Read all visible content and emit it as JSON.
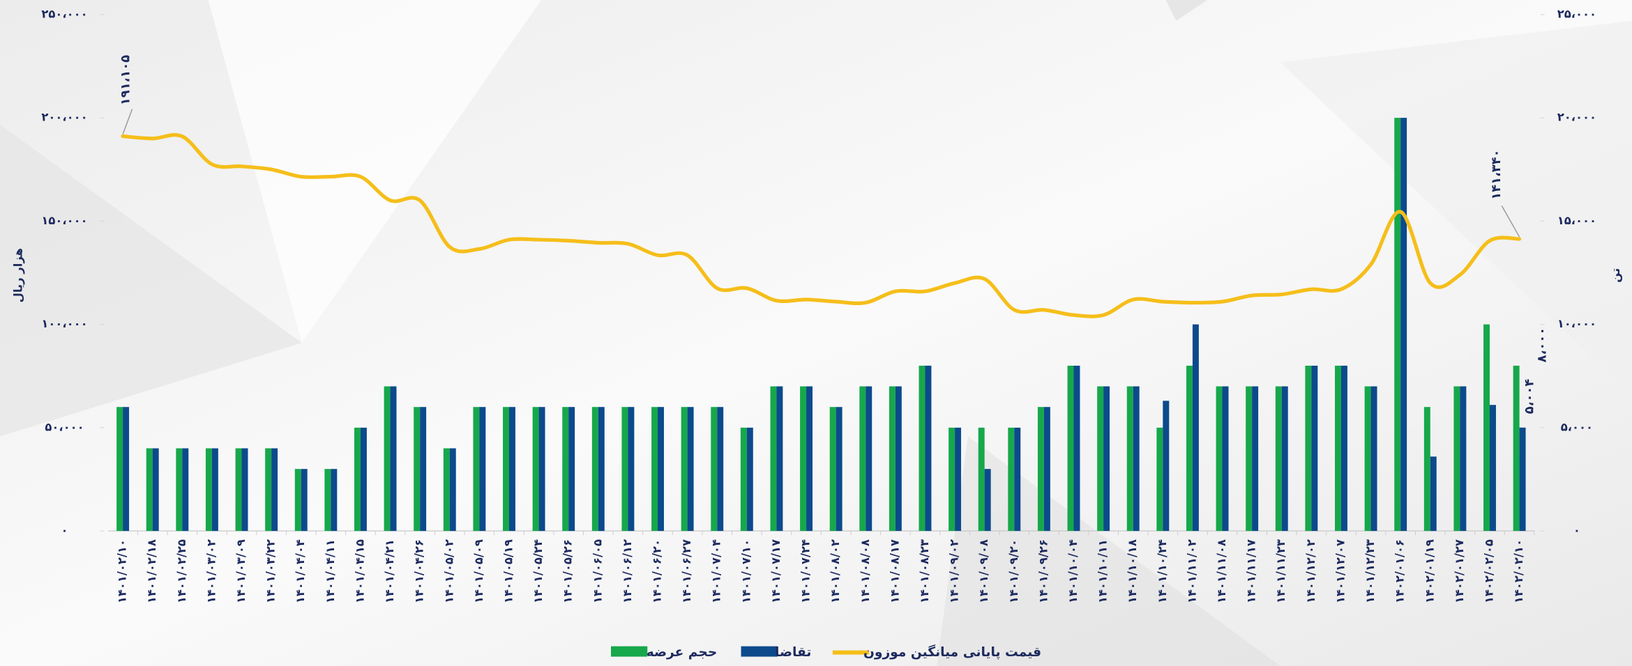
{
  "chart_data": {
    "type": "bar",
    "categories": [
      "۱۴۰۱/۰۲/۱۰",
      "۱۴۰۱/۰۲/۱۸",
      "۱۴۰۱/۰۲/۲۵",
      "۱۴۰۱/۰۳/۰۲",
      "۱۴۰۱/۰۳/۰۹",
      "۱۴۰۱/۰۳/۲۲",
      "۱۴۰۱/۰۴/۰۴",
      "۱۴۰۱/۰۴/۱۱",
      "۱۴۰۱/۰۴/۱۵",
      "۱۴۰۱/۰۴/۲۱",
      "۱۴۰۱/۰۴/۲۶",
      "۱۴۰۱/۰۵/۰۲",
      "۱۴۰۱/۰۵/۰۹",
      "۱۴۰۱/۰۵/۱۹",
      "۱۴۰۱/۰۵/۲۴",
      "۱۴۰۱/۰۵/۲۶",
      "۱۴۰۱/۰۶/۰۵",
      "۱۴۰۱/۰۶/۱۲",
      "۱۴۰۱/۰۶/۲۰",
      "۱۴۰۱/۰۶/۲۷",
      "۱۴۰۱/۰۷/۰۴",
      "۱۴۰۱/۰۷/۱۰",
      "۱۴۰۱/۰۷/۱۷",
      "۱۴۰۱/۰۷/۲۴",
      "۱۴۰۱/۰۸/۰۲",
      "۱۴۰۱/۰۸/۰۸",
      "۱۴۰۱/۰۸/۱۷",
      "۱۴۰۱/۰۸/۲۳",
      "۱۴۰۱/۰۹/۰۲",
      "۱۴۰۱/۰۹/۰۸",
      "۱۴۰۱/۰۹/۲۰",
      "۱۴۰۱/۰۹/۲۶",
      "۱۴۰۱/۱۰/۰۴",
      "۱۴۰۱/۱۰/۱۱",
      "۱۴۰۱/۱۰/۱۸",
      "۱۴۰۱/۱۰/۲۴",
      "۱۴۰۱/۱۱/۰۲",
      "۱۴۰۱/۱۱/۰۸",
      "۱۴۰۱/۱۱/۱۷",
      "۱۴۰۱/۱۱/۲۳",
      "۱۴۰۱/۱۲/۰۲",
      "۱۴۰۱/۱۲/۰۷",
      "۱۴۰۱/۱۲/۲۳",
      "۱۴۰۲/۰۱/۰۶",
      "۱۴۰۲/۰۱/۱۹",
      "۱۴۰۲/۰۱/۲۷",
      "۱۴۰۲/۰۲/۰۵",
      "۱۴۰۲/۰۲/۱۰"
    ],
    "series": [
      {
        "name": "حجم عرضه",
        "type": "bar",
        "axis": "y2",
        "color": "#16a84b",
        "values": [
          6000,
          4000,
          4000,
          4000,
          4000,
          4000,
          3000,
          3000,
          5000,
          7000,
          6000,
          4000,
          6000,
          6000,
          6000,
          6000,
          6000,
          6000,
          6000,
          6000,
          6000,
          5000,
          7000,
          7000,
          6000,
          7000,
          7000,
          8000,
          5000,
          5000,
          5000,
          6000,
          8000,
          7000,
          7000,
          5000,
          8000,
          7000,
          7000,
          7000,
          8000,
          8000,
          7000,
          20000,
          6000,
          7000,
          10000,
          8000
        ],
        "value_labels": [
          null,
          null,
          null,
          null,
          null,
          null,
          null,
          null,
          null,
          null,
          null,
          null,
          null,
          null,
          null,
          null,
          null,
          null,
          null,
          null,
          null,
          null,
          null,
          null,
          null,
          null,
          null,
          null,
          null,
          null,
          null,
          null,
          null,
          null,
          null,
          null,
          null,
          null,
          null,
          null,
          null,
          null,
          null,
          null,
          null,
          null,
          null,
          "۸،۰۰۰"
        ]
      },
      {
        "name": "تقاضا",
        "type": "bar",
        "axis": "y2",
        "color": "#0c4a8c",
        "values": [
          6000,
          4000,
          4000,
          4000,
          4000,
          4000,
          3000,
          3000,
          5000,
          7000,
          6000,
          4000,
          6000,
          6000,
          6000,
          6000,
          6000,
          6000,
          6000,
          6000,
          6000,
          5000,
          7000,
          7000,
          6000,
          7000,
          7000,
          8000,
          5000,
          3000,
          5000,
          6000,
          8000,
          7000,
          7000,
          6300,
          10000,
          7000,
          7000,
          7000,
          8000,
          8000,
          7000,
          20000,
          3600,
          7000,
          6100,
          5004
        ],
        "value_labels": [
          null,
          null,
          null,
          null,
          null,
          null,
          null,
          null,
          null,
          null,
          null,
          null,
          null,
          null,
          null,
          null,
          null,
          null,
          null,
          null,
          null,
          null,
          null,
          null,
          null,
          null,
          null,
          null,
          null,
          null,
          null,
          null,
          null,
          null,
          null,
          null,
          null,
          null,
          null,
          null,
          null,
          null,
          null,
          null,
          null,
          null,
          null,
          "۵،۰۰۴"
        ]
      },
      {
        "name": "قیمت پایانی میانگین موزون",
        "type": "line",
        "axis": "y",
        "color": "#f5be1a",
        "values": [
          191105,
          190000,
          191000,
          177500,
          176500,
          175000,
          171500,
          171500,
          171500,
          160000,
          160000,
          137500,
          136500,
          141000,
          141000,
          140500,
          139500,
          139000,
          133500,
          133500,
          117500,
          117500,
          111500,
          112000,
          111000,
          110500,
          116000,
          116000,
          120000,
          122000,
          107000,
          107000,
          104500,
          104500,
          112000,
          111000,
          110500,
          111000,
          114000,
          114500,
          117000,
          117000,
          129000,
          154500,
          120000,
          124000,
          140500,
          141340
        ],
        "value_labels": [
          "۱۹۱،۱۰۵",
          null,
          null,
          null,
          null,
          null,
          null,
          null,
          null,
          null,
          null,
          null,
          null,
          null,
          null,
          null,
          null,
          null,
          null,
          null,
          null,
          null,
          null,
          null,
          null,
          null,
          null,
          null,
          null,
          null,
          null,
          null,
          null,
          null,
          null,
          null,
          null,
          null,
          null,
          null,
          null,
          null,
          null,
          null,
          null,
          null,
          null,
          "۱۴۱،۳۴۰"
        ]
      }
    ],
    "y_label": "هزار ریال",
    "y2_label": "تن",
    "ylim": [
      0,
      250000
    ],
    "yticks": [
      {
        "value": 0,
        "label": "۰"
      },
      {
        "value": 50000,
        "label": "۵۰،۰۰۰"
      },
      {
        "value": 100000,
        "label": "۱۰۰،۰۰۰"
      },
      {
        "value": 150000,
        "label": "۱۵۰،۰۰۰"
      },
      {
        "value": 200000,
        "label": "۲۰۰،۰۰۰"
      },
      {
        "value": 250000,
        "label": "۲۵۰،۰۰۰"
      }
    ],
    "y2lim": [
      0,
      25000
    ],
    "y2ticks": [
      {
        "value": 0,
        "label": "۰"
      },
      {
        "value": 5000,
        "label": "۵،۰۰۰"
      },
      {
        "value": 10000,
        "label": "۱۰،۰۰۰"
      },
      {
        "value": 15000,
        "label": "۱۵،۰۰۰"
      },
      {
        "value": 20000,
        "label": "۲۰،۰۰۰"
      },
      {
        "value": 25000,
        "label": "۲۵،۰۰۰"
      }
    ]
  }
}
